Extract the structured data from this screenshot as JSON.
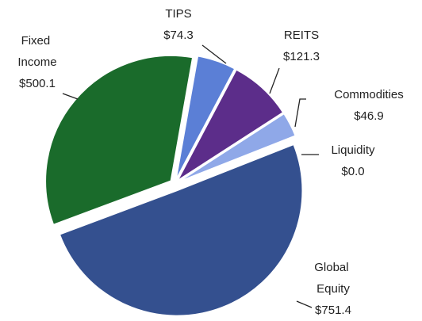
{
  "chart_data": {
    "type": "pie",
    "categories": [
      "TIPS",
      "REITS",
      "Commodities",
      "Liquidity",
      "Global Equity",
      "Fixed Income"
    ],
    "values": [
      74.3,
      121.3,
      46.9,
      0.0,
      751.4,
      500.1
    ],
    "value_labels": [
      "$74.3",
      "$121.3",
      "$46.9",
      "$0.0",
      "$751.4",
      "$500.1"
    ],
    "colors": [
      "#5b7fd6",
      "#5c2d8a",
      "#8fa8e8",
      "#8fa8e8",
      "#34508f",
      "#1a6b2b"
    ]
  }
}
